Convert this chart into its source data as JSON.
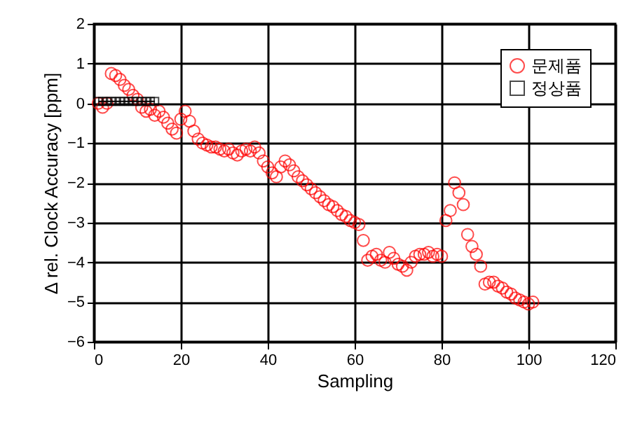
{
  "chart_data": {
    "type": "scatter",
    "xlabel": "Sampling",
    "ylabel": "Δ rel. Clock Accuracy [ppm]",
    "xlim": [
      0,
      120
    ],
    "xticks": [
      0,
      20,
      40,
      60,
      80,
      100,
      120
    ],
    "ylim": [
      -6,
      2
    ],
    "yticks": [
      -6,
      -5,
      -4,
      -3,
      -2,
      -1,
      0,
      1,
      2
    ],
    "grid": true,
    "legend": "top right",
    "series": [
      {
        "name": "문제품",
        "marker": "circle",
        "color": "#ff0000",
        "x": [
          1,
          2,
          3,
          4,
          5,
          6,
          7,
          8,
          9,
          10,
          11,
          12,
          13,
          14,
          15,
          16,
          17,
          18,
          19,
          20,
          21,
          22,
          23,
          24,
          25,
          26,
          27,
          28,
          29,
          30,
          31,
          32,
          33,
          34,
          35,
          36,
          37,
          38,
          39,
          40,
          41,
          42,
          43,
          44,
          45,
          46,
          47,
          48,
          49,
          50,
          51,
          52,
          53,
          54,
          55,
          56,
          57,
          58,
          59,
          60,
          61,
          62,
          63,
          64,
          65,
          66,
          67,
          68,
          69,
          70,
          71,
          72,
          73,
          74,
          75,
          76,
          77,
          78,
          79,
          80,
          81,
          82,
          83,
          84,
          85,
          86,
          87,
          88,
          89,
          90,
          91,
          92,
          93,
          94,
          95,
          96,
          97,
          98,
          99,
          100,
          101
        ],
        "values": [
          0,
          -0.1,
          0,
          0.75,
          0.7,
          0.6,
          0.45,
          0.35,
          0.2,
          0.1,
          -0.1,
          -0.2,
          -0.15,
          -0.3,
          -0.2,
          -0.35,
          -0.5,
          -0.65,
          -0.75,
          -0.4,
          -0.2,
          -0.45,
          -0.7,
          -0.9,
          -1.0,
          -1.05,
          -1.1,
          -1.1,
          -1.15,
          -1.2,
          -1.15,
          -1.25,
          -1.3,
          -1.2,
          -1.15,
          -1.2,
          -1.1,
          -1.25,
          -1.45,
          -1.6,
          -1.75,
          -1.85,
          -1.6,
          -1.45,
          -1.55,
          -1.7,
          -1.85,
          -1.95,
          -2.05,
          -2.15,
          -2.25,
          -2.35,
          -2.45,
          -2.55,
          -2.6,
          -2.7,
          -2.8,
          -2.85,
          -2.95,
          -3.0,
          -3.05,
          -3.45,
          -3.95,
          -3.85,
          -3.8,
          -3.95,
          -4.0,
          -3.75,
          -3.9,
          -4.05,
          -4.1,
          -4.2,
          -4.0,
          -3.85,
          -3.8,
          -3.8,
          -3.75,
          -3.85,
          -3.8,
          -3.85,
          -2.95,
          -2.7,
          -2.0,
          -2.25,
          -2.55,
          -3.3,
          -3.6,
          -3.8,
          -4.1,
          -4.55,
          -4.5,
          -4.5,
          -4.6,
          -4.65,
          -4.75,
          -4.8,
          -4.9,
          -4.95,
          -5.0,
          -5.05,
          -5.0
        ]
      },
      {
        "name": "정상품",
        "type": "line",
        "marker": "square",
        "color": "#000000",
        "x": [
          1,
          2,
          3,
          4,
          5,
          6,
          7,
          8,
          9,
          10,
          11,
          12,
          13,
          14
        ],
        "values": [
          0.05,
          0.05,
          0.05,
          0.05,
          0.05,
          0.05,
          0.05,
          0.05,
          0.05,
          0.05,
          0.05,
          0.05,
          0.05,
          0.05
        ]
      }
    ]
  }
}
